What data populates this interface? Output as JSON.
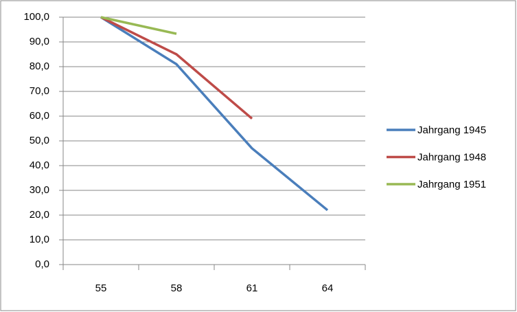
{
  "chart_data": {
    "type": "line",
    "categories": [
      "55",
      "58",
      "61",
      "64"
    ],
    "series": [
      {
        "name": "Jahrgang 1945",
        "color": "#4a7ebb",
        "values": [
          100,
          81,
          47,
          22
        ]
      },
      {
        "name": "Jahrgang 1948",
        "color": "#be4b48",
        "values": [
          100,
          85,
          59,
          null
        ]
      },
      {
        "name": "Jahrgang 1951",
        "color": "#98b954",
        "values": [
          100,
          93.3,
          null,
          null
        ]
      }
    ],
    "ylim": [
      0,
      100
    ],
    "yticks": [
      {
        "value": 0,
        "label": "0,0"
      },
      {
        "value": 10,
        "label": "10,0"
      },
      {
        "value": 20,
        "label": "20,0"
      },
      {
        "value": 30,
        "label": "30,0"
      },
      {
        "value": 40,
        "label": "40,0"
      },
      {
        "value": 50,
        "label": "50,0"
      },
      {
        "value": 60,
        "label": "60,0"
      },
      {
        "value": 70,
        "label": "70,0"
      },
      {
        "value": 80,
        "label": "80,0"
      },
      {
        "value": 90,
        "label": "90,0"
      },
      {
        "value": 100,
        "label": "100,0"
      }
    ],
    "grid": true,
    "legend": "right"
  }
}
